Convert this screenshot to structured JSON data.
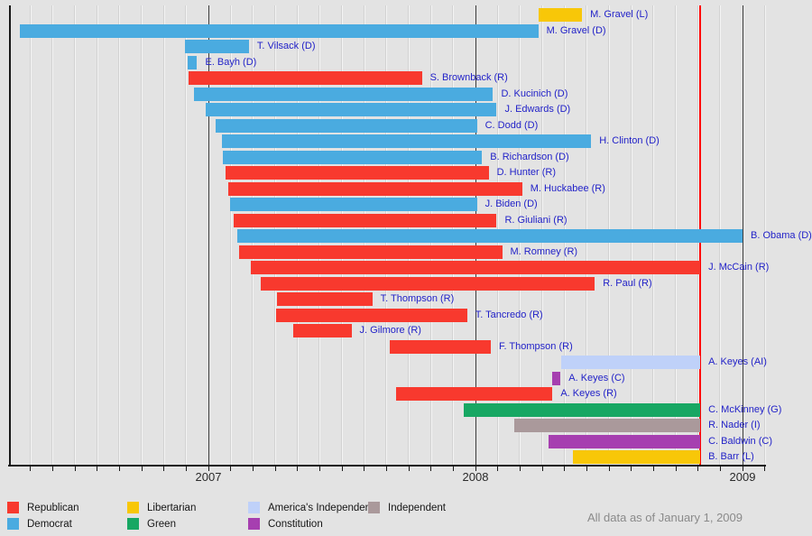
{
  "chart_data": {
    "type": "bar",
    "variant": "horizontal-timeline-gantt",
    "description": "2008 US presidential campaign durations by candidate",
    "note": "All data as of January 1, 2009",
    "x_axis": {
      "domain_start": "2006-04-01",
      "domain_end": "2009-02-01",
      "minor_grid": "monthly",
      "ticks": [
        {
          "label": "2007",
          "date": "2007-01-01"
        },
        {
          "label": "2008",
          "date": "2008-01-01"
        },
        {
          "label": "2009",
          "date": "2009-01-01"
        }
      ]
    },
    "event_line": {
      "date": "2008-11-04",
      "color": "#ff0000"
    },
    "party_colors": {
      "Republican": "#f8392e",
      "Democrat": "#4aabe0",
      "Libertarian": "#f8c708",
      "Green": "#17a763",
      "AmericasIndependent": "#bfd1f9",
      "Constitution": "#a63fb0",
      "Independent": "#aa999b"
    },
    "colors": {
      "background": "#e3e3e3",
      "axis": "#181818",
      "candidate_label": "#2222c8",
      "year_label": "#2b2b2b",
      "note_text": "#8a8a8a"
    },
    "candidates": [
      {
        "label": "M. Gravel (L)",
        "party": "Libertarian",
        "start": "2008-03-26",
        "end": "2008-05-25"
      },
      {
        "label": "M. Gravel (D)",
        "party": "Democrat",
        "start": "2006-04-17",
        "end": "2008-03-26"
      },
      {
        "label": "T. Vilsack (D)",
        "party": "Democrat",
        "start": "2006-11-30",
        "end": "2007-02-26"
      },
      {
        "label": "E. Bayh (D)",
        "party": "Democrat",
        "start": "2006-12-03",
        "end": "2006-12-16"
      },
      {
        "label": "S. Brownback (R)",
        "party": "Republican",
        "start": "2006-12-04",
        "end": "2007-10-19"
      },
      {
        "label": "D. Kucinich (D)",
        "party": "Democrat",
        "start": "2006-12-12",
        "end": "2008-01-25"
      },
      {
        "label": "J. Edwards (D)",
        "party": "Democrat",
        "start": "2006-12-28",
        "end": "2008-01-30"
      },
      {
        "label": "C. Dodd (D)",
        "party": "Democrat",
        "start": "2007-01-11",
        "end": "2008-01-03"
      },
      {
        "label": "H. Clinton (D)",
        "party": "Democrat",
        "start": "2007-01-20",
        "end": "2008-06-07"
      },
      {
        "label": "B. Richardson (D)",
        "party": "Democrat",
        "start": "2007-01-21",
        "end": "2008-01-10"
      },
      {
        "label": "D. Hunter (R)",
        "party": "Republican",
        "start": "2007-01-25",
        "end": "2008-01-19"
      },
      {
        "label": "M. Huckabee (R)",
        "party": "Republican",
        "start": "2007-01-28",
        "end": "2008-03-04"
      },
      {
        "label": "J. Biden (D)",
        "party": "Democrat",
        "start": "2007-01-31",
        "end": "2008-01-03"
      },
      {
        "label": "R. Giuliani (R)",
        "party": "Republican",
        "start": "2007-02-05",
        "end": "2008-01-30"
      },
      {
        "label": "B. Obama (D)",
        "party": "Democrat",
        "start": "2007-02-10",
        "end": "2009-01-01"
      },
      {
        "label": "M. Romney (R)",
        "party": "Republican",
        "start": "2007-02-13",
        "end": "2008-02-07"
      },
      {
        "label": "J. McCain (R)",
        "party": "Republican",
        "start": "2007-02-28",
        "end": "2008-11-04"
      },
      {
        "label": "R. Paul (R)",
        "party": "Republican",
        "start": "2007-03-12",
        "end": "2008-06-12"
      },
      {
        "label": "T. Thompson (R)",
        "party": "Republican",
        "start": "2007-04-04",
        "end": "2007-08-12"
      },
      {
        "label": "T. Tancredo (R)",
        "party": "Republican",
        "start": "2007-04-02",
        "end": "2007-12-20"
      },
      {
        "label": "J. Gilmore (R)",
        "party": "Republican",
        "start": "2007-04-26",
        "end": "2007-07-14"
      },
      {
        "label": "F. Thompson (R)",
        "party": "Republican",
        "start": "2007-09-05",
        "end": "2008-01-22"
      },
      {
        "label": "A. Keyes (AI)",
        "party": "AmericasIndependent",
        "start": "2008-04-27",
        "end": "2008-11-04"
      },
      {
        "label": "A. Keyes (C)",
        "party": "Constitution",
        "start": "2008-04-15",
        "end": "2008-04-26"
      },
      {
        "label": "A. Keyes (R)",
        "party": "Republican",
        "start": "2007-09-14",
        "end": "2008-04-15"
      },
      {
        "label": "C. McKinney (G)",
        "party": "Green",
        "start": "2007-12-16",
        "end": "2008-11-04"
      },
      {
        "label": "R. Nader (I)",
        "party": "Independent",
        "start": "2008-02-24",
        "end": "2008-11-04"
      },
      {
        "label": "C. Baldwin (C)",
        "party": "Constitution",
        "start": "2008-04-10",
        "end": "2008-11-04"
      },
      {
        "label": "B. Barr (L)",
        "party": "Libertarian",
        "start": "2008-05-12",
        "end": "2008-11-04"
      }
    ],
    "legend": [
      {
        "label": "Republican",
        "party": "Republican",
        "row": 0,
        "col": 0
      },
      {
        "label": "Democrat",
        "party": "Democrat",
        "row": 1,
        "col": 0
      },
      {
        "label": "Libertarian",
        "party": "Libertarian",
        "row": 0,
        "col": 1
      },
      {
        "label": "Green",
        "party": "Green",
        "row": 1,
        "col": 1
      },
      {
        "label": "America's Independent",
        "party": "AmericasIndependent",
        "row": 0,
        "col": 2
      },
      {
        "label": "Constitution",
        "party": "Constitution",
        "row": 1,
        "col": 2
      },
      {
        "label": "Independent",
        "party": "Independent",
        "row": 0,
        "col": 3
      }
    ]
  }
}
